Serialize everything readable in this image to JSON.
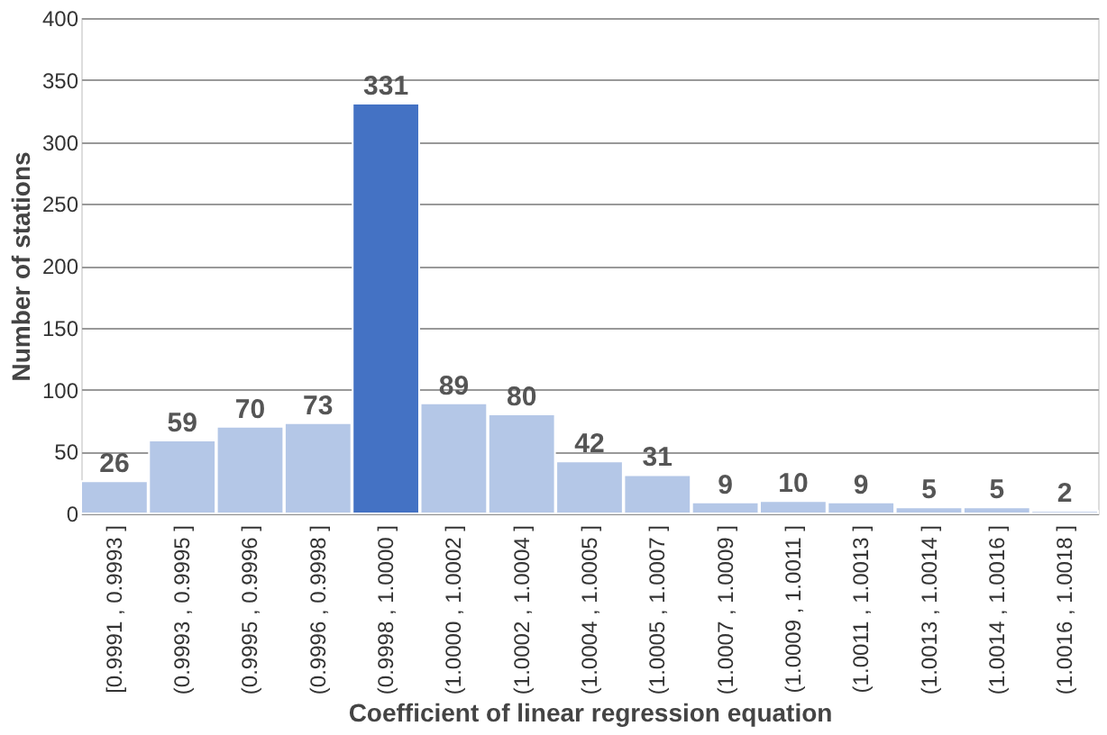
{
  "chart_data": {
    "type": "bar",
    "xlabel": "Coefficient of linear regression equation",
    "ylabel": "Number of stations",
    "categories": [
      "[0.9991 , 0.9993 ]",
      "(0.9993 , 0.9995 ]",
      "(0.9995 , 0.9996 ]",
      "(0.9996 , 0.9998 ]",
      "(0.9998 , 1.0000 ]",
      "(1.0000 , 1.0002 ]",
      "(1.0002 , 1.0004 ]",
      "(1.0004 , 1.0005 ]",
      "(1.0005 , 1.0007 ]",
      "(1.0007 , 1.0009 ]",
      "(1.0009 , 1.0011 ]",
      "(1.0011 , 1.0013 ]",
      "(1.0013 , 1.0014 ]",
      "(1.0014 , 1.0016 ]",
      "(1.0016 , 1.0018 ]"
    ],
    "values": [
      26,
      59,
      70,
      73,
      331,
      89,
      80,
      42,
      31,
      9,
      10,
      9,
      5,
      5,
      2
    ],
    "colors": [
      "#b4c7e7",
      "#b4c7e7",
      "#b4c7e7",
      "#b4c7e7",
      "#4472c4",
      "#b4c7e7",
      "#b4c7e7",
      "#b4c7e7",
      "#b4c7e7",
      "#b4c7e7",
      "#b4c7e7",
      "#b4c7e7",
      "#b4c7e7",
      "#b4c7e7",
      "#b4c7e7"
    ],
    "ylim": [
      0,
      400
    ],
    "yticks": [
      0,
      50,
      100,
      150,
      200,
      250,
      300,
      350,
      400
    ],
    "grid": "y",
    "data_labels": true
  }
}
